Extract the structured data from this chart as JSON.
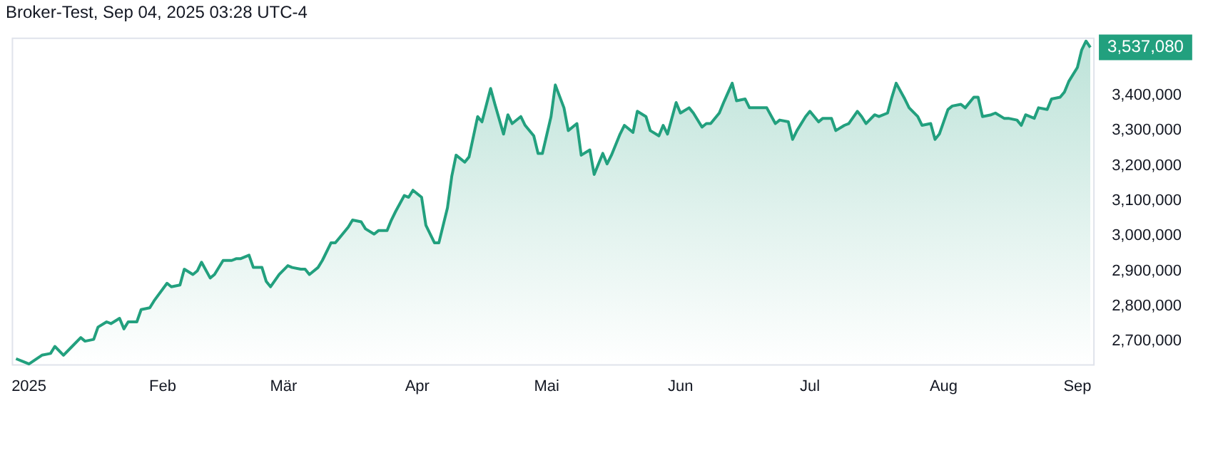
{
  "chart_data": {
    "type": "area",
    "title": "Broker-Test, Sep 04, 2025 03:28 UTC-4",
    "x": [
      "2024-12-29",
      "2024-12-31",
      "2025-01-01",
      "2025-01-04",
      "2025-01-06",
      "2025-01-07",
      "2025-01-09",
      "2025-01-11",
      "2025-01-13",
      "2025-01-14",
      "2025-01-16",
      "2025-01-17",
      "2025-01-19",
      "2025-01-20",
      "2025-01-22",
      "2025-01-23",
      "2025-01-24",
      "2025-01-26",
      "2025-01-27",
      "2025-01-29",
      "2025-01-30",
      "2025-02-02",
      "2025-02-03",
      "2025-02-05",
      "2025-02-06",
      "2025-02-08",
      "2025-02-09",
      "2025-02-10",
      "2025-02-12",
      "2025-02-13",
      "2025-02-15",
      "2025-02-17",
      "2025-02-18",
      "2025-02-19",
      "2025-02-21",
      "2025-02-22",
      "2025-02-24",
      "2025-02-25",
      "2025-02-26",
      "2025-02-28",
      "2025-03-02",
      "2025-03-03",
      "2025-03-05",
      "2025-03-06",
      "2025-03-07",
      "2025-03-09",
      "2025-03-10",
      "2025-03-12",
      "2025-03-13",
      "2025-03-14",
      "2025-03-16",
      "2025-03-17",
      "2025-03-19",
      "2025-03-20",
      "2025-03-22",
      "2025-03-23",
      "2025-03-25",
      "2025-03-26",
      "2025-03-27",
      "2025-03-29",
      "2025-03-30",
      "2025-03-31",
      "2025-04-02",
      "2025-04-03",
      "2025-04-05",
      "2025-04-06",
      "2025-04-08",
      "2025-04-09",
      "2025-04-10",
      "2025-04-12",
      "2025-04-13",
      "2025-04-15",
      "2025-04-16",
      "2025-04-18",
      "2025-04-19",
      "2025-04-21",
      "2025-04-22",
      "2025-04-23",
      "2025-04-25",
      "2025-04-26",
      "2025-04-28",
      "2025-04-29",
      "2025-04-30",
      "2025-05-02",
      "2025-05-03",
      "2025-05-05",
      "2025-05-06",
      "2025-05-08",
      "2025-05-09",
      "2025-05-11",
      "2025-05-12",
      "2025-05-14",
      "2025-05-15",
      "2025-05-16",
      "2025-05-18",
      "2025-05-19",
      "2025-05-21",
      "2025-05-22",
      "2025-05-24",
      "2025-05-25",
      "2025-05-27",
      "2025-05-28",
      "2025-05-29",
      "2025-05-31",
      "2025-06-01",
      "2025-06-03",
      "2025-06-04",
      "2025-06-06",
      "2025-06-07",
      "2025-06-08",
      "2025-06-10",
      "2025-06-11",
      "2025-06-13",
      "2025-06-14",
      "2025-06-16",
      "2025-06-17",
      "2025-06-20",
      "2025-06-21",
      "2025-06-23",
      "2025-06-24",
      "2025-06-26",
      "2025-06-27",
      "2025-06-28",
      "2025-06-30",
      "2025-07-01",
      "2025-07-03",
      "2025-07-04",
      "2025-07-06",
      "2025-07-07",
      "2025-07-09",
      "2025-07-10",
      "2025-07-12",
      "2025-07-13",
      "2025-07-14",
      "2025-07-16",
      "2025-07-17",
      "2025-07-19",
      "2025-07-20",
      "2025-07-21",
      "2025-07-23",
      "2025-07-24",
      "2025-07-26",
      "2025-07-27",
      "2025-07-29",
      "2025-07-30",
      "2025-07-31",
      "2025-08-02",
      "2025-08-03",
      "2025-08-05",
      "2025-08-06",
      "2025-08-08",
      "2025-08-09",
      "2025-08-10",
      "2025-08-12",
      "2025-08-13",
      "2025-08-15",
      "2025-08-16",
      "2025-08-18",
      "2025-08-19",
      "2025-08-20",
      "2025-08-22",
      "2025-08-23",
      "2025-08-25",
      "2025-08-26",
      "2025-08-28",
      "2025-08-29",
      "2025-08-30",
      "2025-09-01",
      "2025-09-02",
      "2025-09-03",
      "2025-09-04"
    ],
    "series": [
      {
        "color": "#22a07e",
        "values": [
          2650000,
          2640000,
          2635000,
          2660000,
          2665000,
          2685000,
          2660000,
          2685000,
          2710000,
          2700000,
          2705000,
          2740000,
          2755000,
          2750000,
          2765000,
          2735000,
          2755000,
          2755000,
          2790000,
          2795000,
          2815000,
          2865000,
          2855000,
          2860000,
          2905000,
          2890000,
          2900000,
          2925000,
          2880000,
          2890000,
          2930000,
          2930000,
          2935000,
          2935000,
          2945000,
          2910000,
          2910000,
          2870000,
          2855000,
          2890000,
          2915000,
          2910000,
          2905000,
          2905000,
          2890000,
          2910000,
          2930000,
          2980000,
          2980000,
          2995000,
          3025000,
          3045000,
          3040000,
          3020000,
          3005000,
          3015000,
          3015000,
          3045000,
          3070000,
          3115000,
          3110000,
          3130000,
          3110000,
          3030000,
          2980000,
          2980000,
          3080000,
          3170000,
          3230000,
          3210000,
          3225000,
          3340000,
          3325000,
          3420000,
          3375000,
          3290000,
          3345000,
          3320000,
          3340000,
          3315000,
          3285000,
          3235000,
          3235000,
          3340000,
          3430000,
          3365000,
          3300000,
          3320000,
          3230000,
          3245000,
          3175000,
          3235000,
          3205000,
          3230000,
          3290000,
          3315000,
          3295000,
          3355000,
          3340000,
          3300000,
          3285000,
          3315000,
          3290000,
          3380000,
          3350000,
          3365000,
          3350000,
          3310000,
          3320000,
          3320000,
          3350000,
          3380000,
          3435000,
          3385000,
          3390000,
          3365000,
          3365000,
          3365000,
          3320000,
          3330000,
          3325000,
          3275000,
          3300000,
          3340000,
          3355000,
          3325000,
          3335000,
          3335000,
          3300000,
          3315000,
          3320000,
          3355000,
          3340000,
          3320000,
          3345000,
          3340000,
          3350000,
          3395000,
          3435000,
          3390000,
          3365000,
          3340000,
          3315000,
          3320000,
          3275000,
          3290000,
          3360000,
          3370000,
          3375000,
          3365000,
          3395000,
          3395000,
          3340000,
          3345000,
          3350000,
          3335000,
          3335000,
          3330000,
          3315000,
          3345000,
          3335000,
          3365000,
          3360000,
          3390000,
          3395000,
          3410000,
          3440000,
          3480000,
          3530000,
          3555000,
          3537080
        ]
      }
    ],
    "xlim": [
      "2024-12-28",
      "2025-09-05"
    ],
    "xticks": [
      {
        "value": "2025-01-01",
        "label": "2025"
      },
      {
        "value": "2025-02-01",
        "label": "Feb"
      },
      {
        "value": "2025-03-01",
        "label": "Mär"
      },
      {
        "value": "2025-04-01",
        "label": "Apr"
      },
      {
        "value": "2025-05-01",
        "label": "Mai"
      },
      {
        "value": "2025-06-01",
        "label": "Jun"
      },
      {
        "value": "2025-07-01",
        "label": "Jul"
      },
      {
        "value": "2025-08-01",
        "label": "Aug"
      },
      {
        "value": "2025-09-01",
        "label": "Sep"
      }
    ],
    "ylim": [
      2630000,
      3565000
    ],
    "yticks": [
      {
        "value": 2700000,
        "label": "2,700,000"
      },
      {
        "value": 2800000,
        "label": "2,800,000"
      },
      {
        "value": 2900000,
        "label": "2,900,000"
      },
      {
        "value": 3000000,
        "label": "3,000,000"
      },
      {
        "value": 3100000,
        "label": "3,100,000"
      },
      {
        "value": 3200000,
        "label": "3,200,000"
      },
      {
        "value": 3300000,
        "label": "3,300,000"
      },
      {
        "value": 3400000,
        "label": "3,400,000"
      }
    ],
    "annotations": [
      {
        "text": "3,537,080",
        "x": "2025-09-04",
        "y": 3537080
      }
    ],
    "grid": false,
    "legend": false,
    "marker": "none",
    "line_style": "solid"
  }
}
